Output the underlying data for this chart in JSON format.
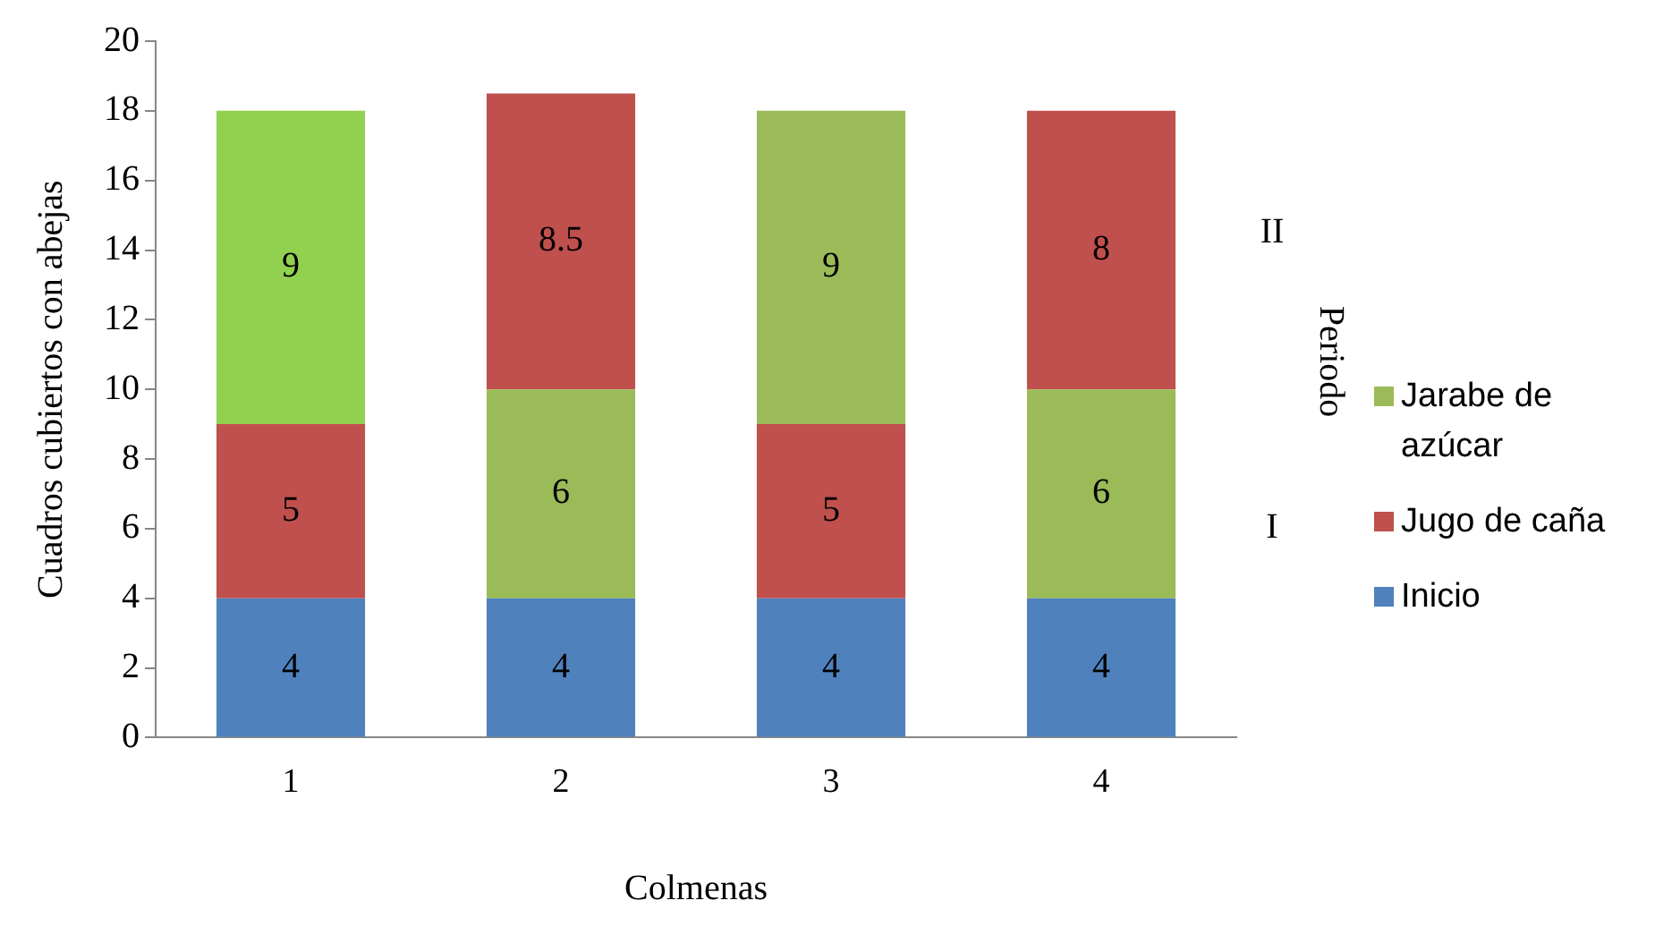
{
  "chart_data": {
    "type": "bar",
    "stacked": true,
    "xlabel": "Colmenas",
    "ylabel": "Cuadros cubiertos con abejas",
    "categories": [
      "1",
      "2",
      "3",
      "4"
    ],
    "series": [
      {
        "name": "Inicio",
        "color": "#4f81bd",
        "values": [
          4,
          4,
          4,
          4
        ]
      },
      {
        "name": "Jugo de caña",
        "color": "#c0504d",
        "values": [
          5,
          null,
          5,
          null
        ]
      },
      {
        "name": "Jarabe de azúcar",
        "color": "#9bbb59",
        "values": [
          null,
          6,
          null,
          6
        ]
      },
      {
        "colors": [
          "#92d050",
          "#9bbb59",
          "#9bbb59",
          "#9bbb59"
        ],
        "values": [
          9,
          null,
          9,
          null
        ]
      },
      {
        "color": "#c0504d",
        "values": [
          null,
          8.5,
          null,
          8
        ]
      }
    ],
    "ylim": [
      0,
      20
    ],
    "yticks": [
      0,
      2,
      4,
      6,
      8,
      10,
      12,
      14,
      16,
      18,
      20
    ],
    "grid": false,
    "legend": "right",
    "data_labels": true,
    "annotations": [
      "II",
      "Periodo",
      "I"
    ]
  }
}
